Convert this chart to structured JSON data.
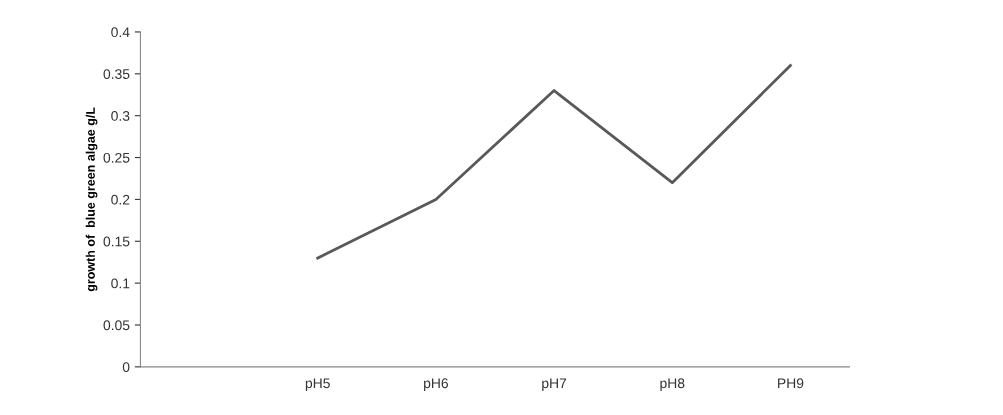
{
  "chart_data": {
    "type": "line",
    "ylabel": "growth of  blue green algae g/L",
    "categories": [
      null,
      "pH5",
      "pH6",
      "pH7",
      "pH8",
      "PH9"
    ],
    "series": [
      {
        "color": "#595959",
        "values": [
          null,
          0.13,
          0.2,
          0.33,
          0.22,
          0.36
        ]
      }
    ],
    "ylim": [
      0,
      0.4
    ],
    "yticks": [
      0,
      0.05,
      0.1,
      0.15,
      0.2,
      0.25,
      0.3,
      0.35,
      0.4
    ],
    "grid": false,
    "marker": "none",
    "line_style": "solid"
  }
}
